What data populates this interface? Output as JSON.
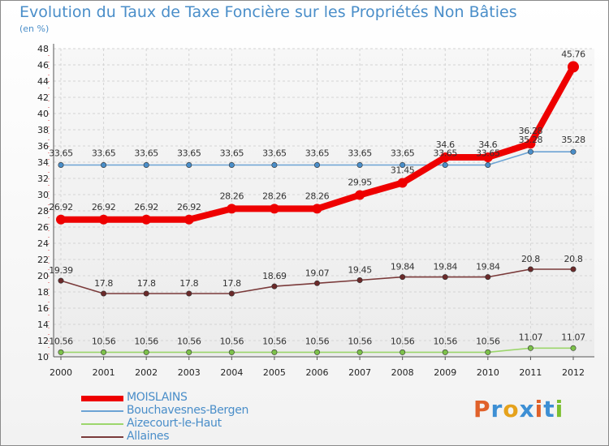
{
  "title": "Evolution du Taux de Taxe Foncière sur les Propriétés Non Bâties",
  "subtitle": "(en %)",
  "logo": {
    "text": "Proxiti",
    "letter_colors": [
      "#e0612a",
      "#3d8fd4",
      "#e5a21c",
      "#3d8fd4",
      "#e0612a",
      "#3d8fd4",
      "#7cbf2f"
    ]
  },
  "chart_data": {
    "type": "line",
    "title": "Evolution du Taux de Taxe Foncière sur les Propriétés Non Bâties",
    "ylabel": "(en %)",
    "xlabel": "",
    "x": [
      "2000",
      "2001",
      "2002",
      "2003",
      "2004",
      "2005",
      "2006",
      "2007",
      "2008",
      "2009",
      "2010",
      "2011",
      "2012"
    ],
    "ylim": [
      10,
      48
    ],
    "yticks": [
      10,
      12,
      14,
      16,
      18,
      20,
      22,
      24,
      26,
      28,
      30,
      32,
      34,
      36,
      38,
      40,
      42,
      44,
      46,
      48
    ],
    "grid": true,
    "legend": "bottom-left",
    "series": [
      {
        "name": "Bouchavesnes-Bergen",
        "color": "#6ca3d4",
        "marker": "#4a8ec9",
        "values": [
          33.65,
          33.65,
          33.65,
          33.65,
          33.65,
          33.65,
          33.65,
          33.65,
          33.65,
          33.65,
          33.65,
          35.28,
          35.28
        ],
        "labels": [
          "33.65",
          "33.65",
          "33.65",
          "33.65",
          "33.65",
          "33.65",
          "33.65",
          "33.65",
          "33.65",
          "33.65",
          "33.65",
          "35.28",
          "35.28"
        ]
      },
      {
        "name": "Aizecourt-le-Haut",
        "color": "#9cd66c",
        "marker": "#7cc14a",
        "values": [
          10.56,
          10.56,
          10.56,
          10.56,
          10.56,
          10.56,
          10.56,
          10.56,
          10.56,
          10.56,
          10.56,
          11.07,
          11.07
        ],
        "labels": [
          "10.56",
          "10.56",
          "10.56",
          "10.56",
          "10.56",
          "10.56",
          "10.56",
          "10.56",
          "10.56",
          "10.56",
          "10.56",
          "11.07",
          "11.07"
        ]
      },
      {
        "name": "Allaines",
        "color": "#7a3a3a",
        "marker": "#6b2a2a",
        "values": [
          19.39,
          17.8,
          17.8,
          17.8,
          17.8,
          18.69,
          19.07,
          19.45,
          19.84,
          19.84,
          19.84,
          20.8,
          20.8
        ],
        "labels": [
          "19.39",
          "17.8",
          "17.8",
          "17.8",
          "17.8",
          "18.69",
          "19.07",
          "19.45",
          "19.84",
          "19.84",
          "19.84",
          "20.8",
          "20.8"
        ]
      },
      {
        "name": "MOISLAINS",
        "color": "#ee0000",
        "marker": "#ee0000",
        "values": [
          26.92,
          26.92,
          26.92,
          26.92,
          28.26,
          28.26,
          28.26,
          29.95,
          31.45,
          34.6,
          34.6,
          36.28,
          45.76
        ],
        "labels": [
          "26.92",
          "26.92",
          "26.92",
          "26.92",
          "28.26",
          "28.26",
          "28.26",
          "29.95",
          "31.45",
          "34.6",
          "34.6",
          "36.28",
          "45.76"
        ]
      }
    ]
  },
  "legend": [
    {
      "name": "MOISLAINS",
      "color": "#ee0000"
    },
    {
      "name": "Bouchavesnes-Bergen",
      "color": "#6ca3d4"
    },
    {
      "name": "Aizecourt-le-Haut",
      "color": "#9cd66c"
    },
    {
      "name": "Allaines",
      "color": "#7a3a3a"
    }
  ]
}
